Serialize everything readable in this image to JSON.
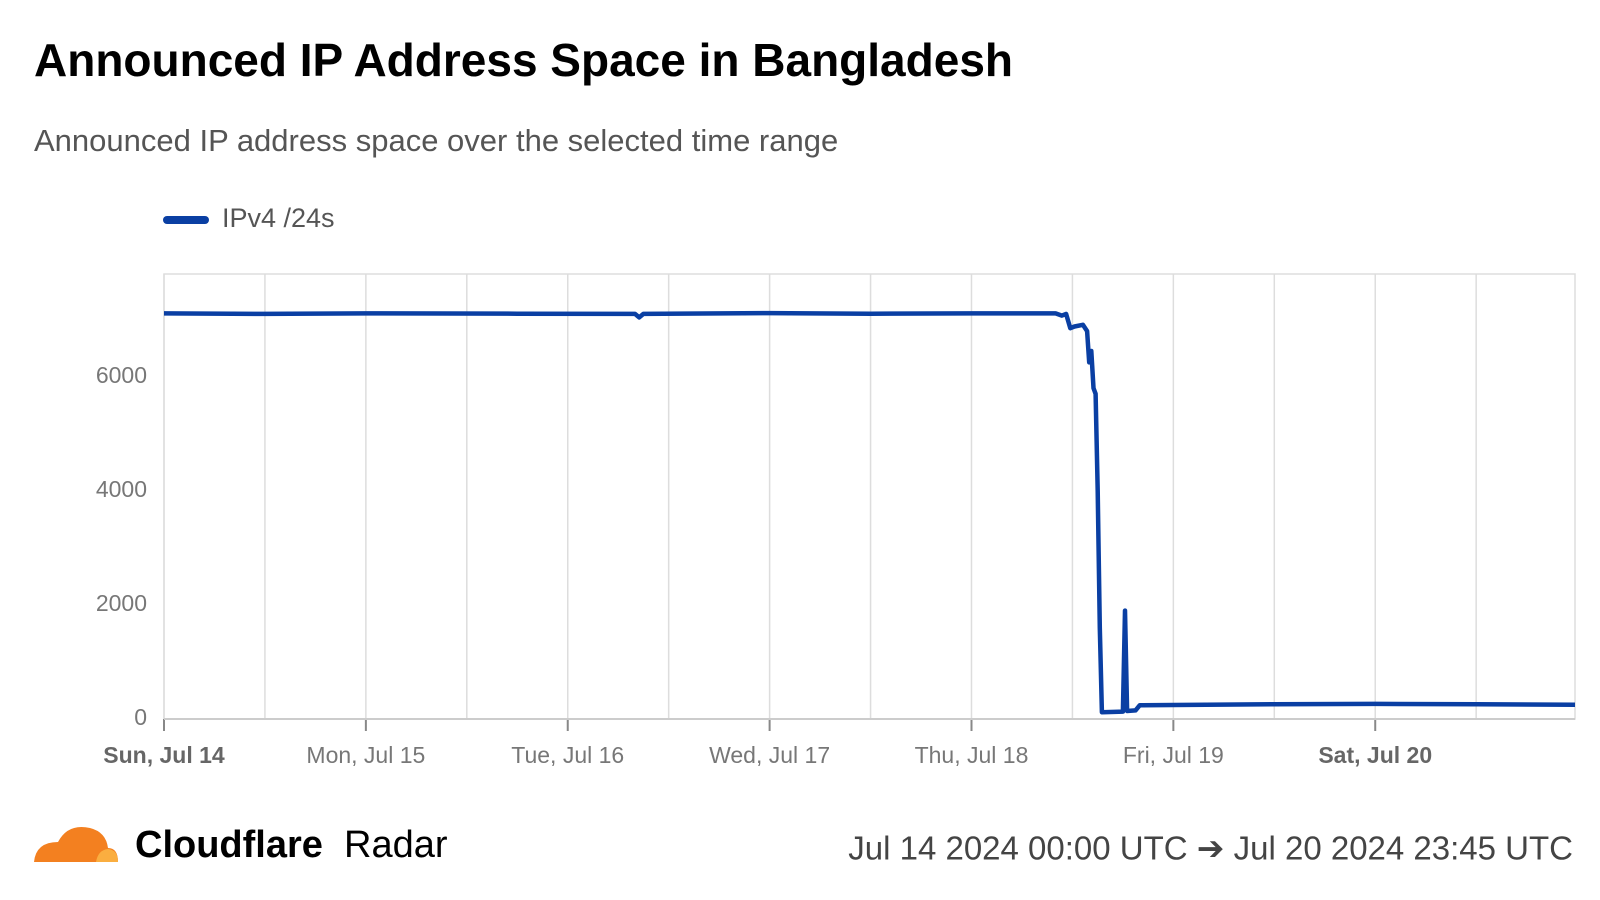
{
  "chart_data": {
    "type": "line",
    "title": "Announced IP Address Space in Bangladesh",
    "subtitle": "Announced IP address space over the selected time range",
    "x": [
      "2024-07-14T00:00",
      "2024-07-14T12:00",
      "2024-07-15T00:00",
      "2024-07-15T18:00",
      "2024-07-16T08:00",
      "2024-07-16T08:30",
      "2024-07-16T09:00",
      "2024-07-17T00:00",
      "2024-07-17T12:00",
      "2024-07-18T00:00",
      "2024-07-18T10:00",
      "2024-07-18T10:45",
      "2024-07-18T11:15",
      "2024-07-18T11:45",
      "2024-07-18T12:15",
      "2024-07-18T13:15",
      "2024-07-18T13:45",
      "2024-07-18T14:00",
      "2024-07-18T14:15",
      "2024-07-18T14:30",
      "2024-07-18T14:45",
      "2024-07-18T15:00",
      "2024-07-18T15:15",
      "2024-07-18T15:30",
      "2024-07-18T18:00",
      "2024-07-18T18:15",
      "2024-07-18T18:30",
      "2024-07-18T19:30",
      "2024-07-18T20:00",
      "2024-07-19T00:00",
      "2024-07-19T12:00",
      "2024-07-20T00:00",
      "2024-07-20T12:00",
      "2024-07-20T23:45"
    ],
    "series": [
      {
        "name": "IPv4 /24s",
        "color": "#0a3fa3",
        "values": [
          7110,
          7100,
          7110,
          7105,
          7100,
          7040,
          7100,
          7115,
          7105,
          7110,
          7110,
          7070,
          7100,
          6850,
          6880,
          6910,
          6800,
          6250,
          6450,
          5800,
          5700,
          4000,
          1600,
          120,
          130,
          1900,
          140,
          150,
          240,
          245,
          260,
          265,
          260,
          250
        ]
      }
    ],
    "xlim": [
      "2024-07-14T00:00",
      "2024-07-20T23:45"
    ],
    "xticks": [
      {
        "value": "2024-07-14T00:00",
        "label": "Sun, Jul 14",
        "bold": true
      },
      {
        "value": "2024-07-15T00:00",
        "label": "Mon, Jul 15"
      },
      {
        "value": "2024-07-16T00:00",
        "label": "Tue, Jul 16"
      },
      {
        "value": "2024-07-17T00:00",
        "label": "Wed, Jul 17"
      },
      {
        "value": "2024-07-18T00:00",
        "label": "Thu, Jul 18"
      },
      {
        "value": "2024-07-19T00:00",
        "label": "Fri, Jul 19"
      },
      {
        "value": "2024-07-20T00:00",
        "label": "Sat, Jul 20",
        "bold": true
      }
    ],
    "xminor": [
      "2024-07-14T12:00",
      "2024-07-15T12:00",
      "2024-07-16T12:00",
      "2024-07-17T12:00",
      "2024-07-18T12:00",
      "2024-07-19T12:00",
      "2024-07-20T12:00"
    ],
    "ylim": [
      0,
      7800
    ],
    "yticks": [
      0,
      2000,
      4000,
      6000
    ],
    "grid": true
  },
  "footer": {
    "brand": "Cloudflare",
    "product": "Radar",
    "range": "Jul 14 2024 00:00 UTC ➔ Jul 20 2024 23:45 UTC"
  }
}
